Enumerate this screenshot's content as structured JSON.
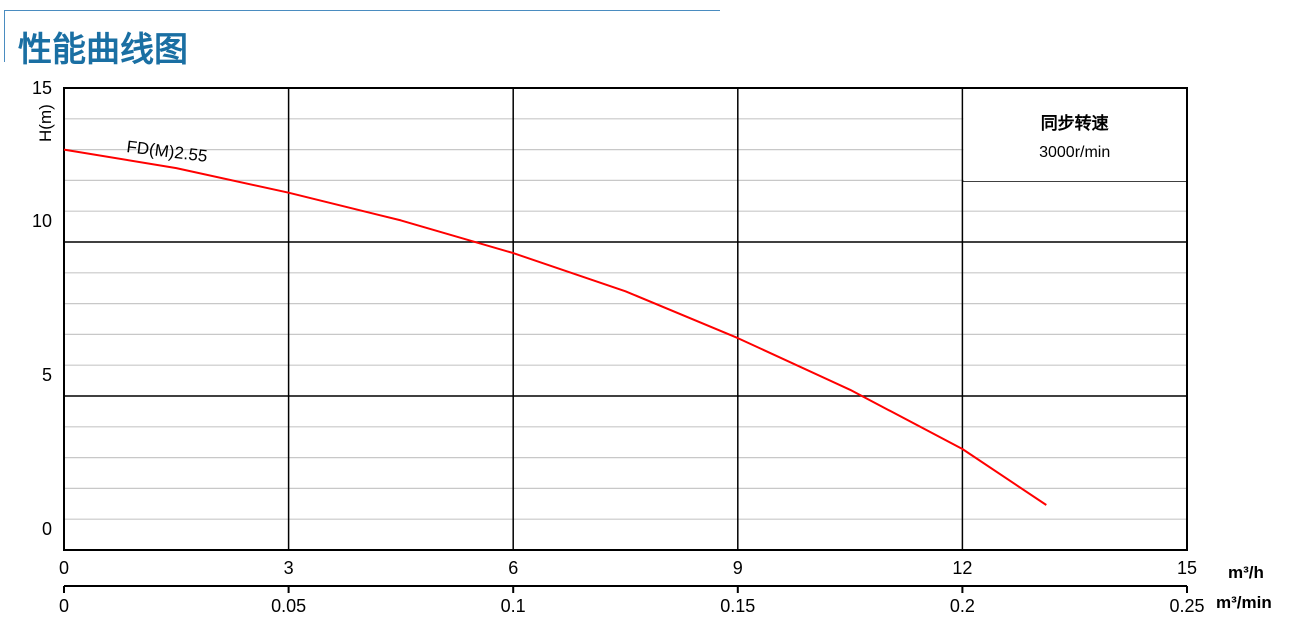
{
  "header": {
    "title": "性能曲线图"
  },
  "chart_data": {
    "type": "line",
    "title": "",
    "ylabel": "H(m)",
    "xlabel": "m³/h",
    "xlabel2": "m³/min",
    "xlim": [
      0,
      15
    ],
    "ylim": [
      0,
      15
    ],
    "xticks": [
      "0",
      "3",
      "6",
      "9",
      "12",
      "15"
    ],
    "xticks2": [
      "0",
      "0.05",
      "0.1",
      "0.15",
      "0.2",
      "0.25"
    ],
    "yticks": [
      "0",
      "5",
      "10",
      "15"
    ],
    "grid": true,
    "series": [
      {
        "name": "FD(M)2.55",
        "color": "#ff0000",
        "x": [
          0,
          1.5,
          3,
          4.5,
          6,
          7.5,
          9,
          10.5,
          12,
          13.12
        ],
        "y": [
          13.0,
          12.4,
          11.6,
          10.7,
          9.64,
          8.4,
          6.88,
          5.2,
          3.28,
          1.46
        ]
      }
    ],
    "annotation": {
      "line1": "同步转速",
      "line2": "3000r/min"
    }
  }
}
